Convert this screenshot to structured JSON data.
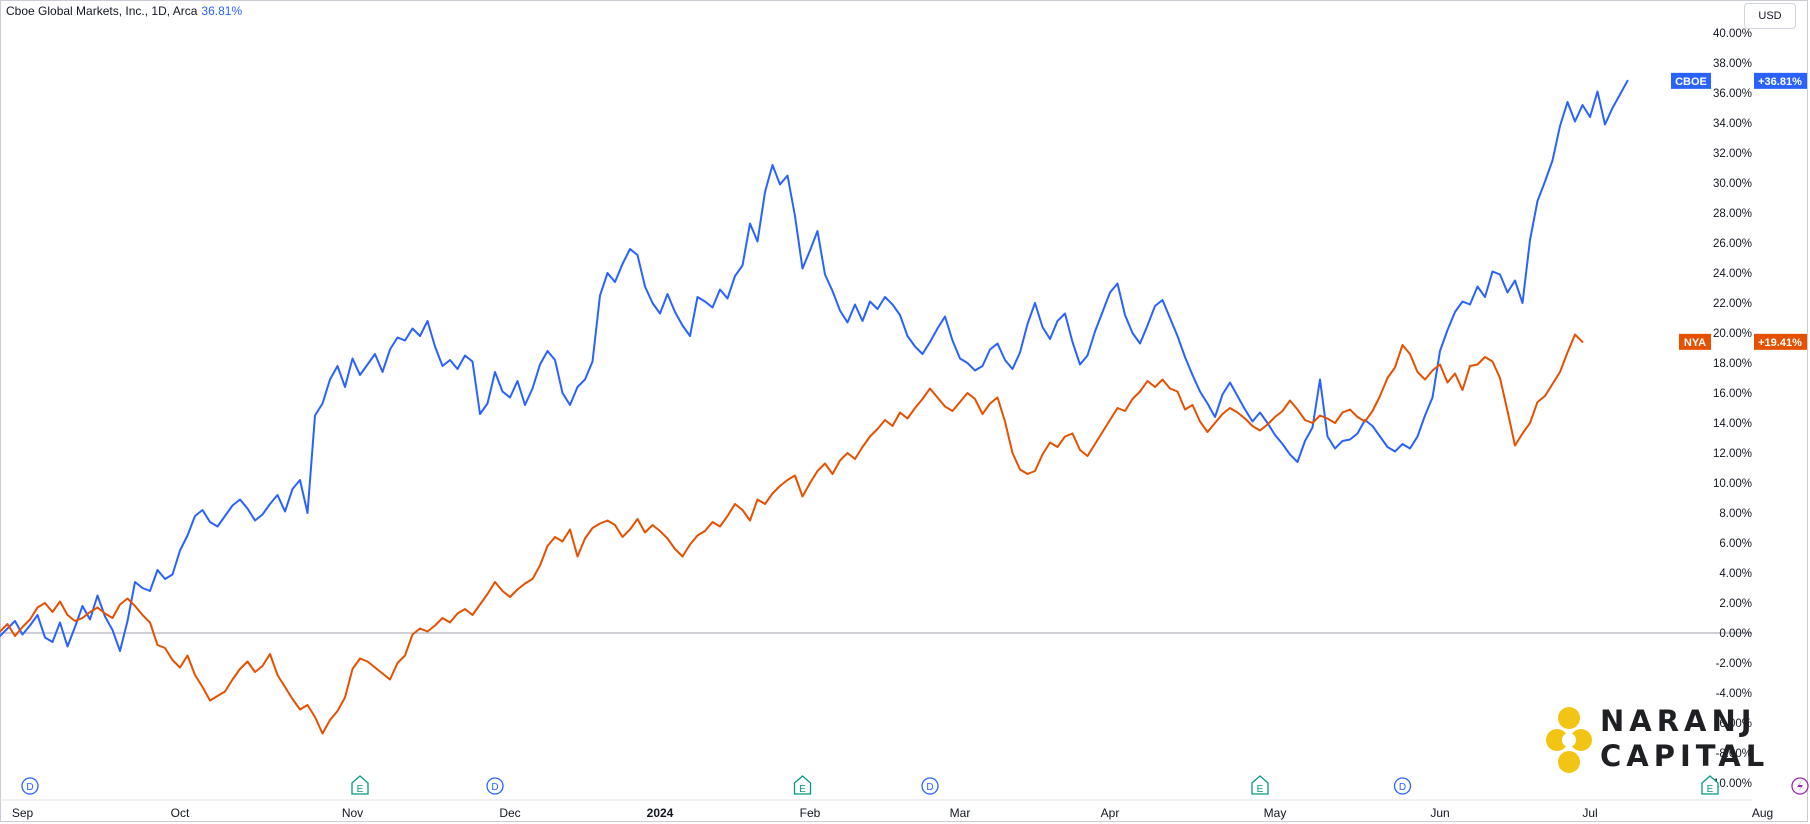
{
  "header": {
    "symbol_label": "Cboe Global Markets, Inc., 1D, Arca",
    "change": "36.81%",
    "currency_button": "USD"
  },
  "logo": {
    "line1": "NARANJ",
    "line2": "CAPITAL"
  },
  "colors": {
    "cboe": "#2962ff",
    "nya": "#e65100",
    "zero_line": "#b2b5be",
    "axis_text": "#131722",
    "dividend": "#2962ff",
    "earnings": "#089981",
    "split": "#9c27b0"
  },
  "chart_data": {
    "type": "line",
    "title": "",
    "x_axis": {
      "ticks": [
        {
          "label": "Sep",
          "idx": 3
        },
        {
          "label": "Oct",
          "idx": 24
        },
        {
          "label": "Nov",
          "idx": 47
        },
        {
          "label": "Dec",
          "idx": 68
        },
        {
          "label": "2024",
          "idx": 88,
          "bold": true
        },
        {
          "label": "Feb",
          "idx": 108
        },
        {
          "label": "Mar",
          "idx": 128
        },
        {
          "label": "Apr",
          "idx": 148
        },
        {
          "label": "May",
          "idx": 170
        },
        {
          "label": "Jun",
          "idx": 192
        },
        {
          "label": "Jul",
          "idx": 212
        },
        {
          "label": "Aug",
          "idx": 235
        },
        {
          "label": "Sep",
          "idx": 257
        }
      ]
    },
    "y_axis": {
      "unit": "%",
      "range": [
        -10,
        40
      ],
      "ticks": [
        "40.00%",
        "38.00%",
        "36.00%",
        "34.00%",
        "32.00%",
        "30.00%",
        "28.00%",
        "26.00%",
        "24.00%",
        "22.00%",
        "20.00%",
        "18.00%",
        "16.00%",
        "14.00%",
        "12.00%",
        "10.00%",
        "8.00%",
        "6.00%",
        "4.00%",
        "2.00%",
        "0.00%",
        "-2.00%",
        "-4.00%",
        "-6.00%",
        "-8.00%",
        "-10.00%"
      ],
      "tick_values": [
        40,
        38,
        36,
        34,
        32,
        30,
        28,
        26,
        24,
        22,
        20,
        18,
        16,
        14,
        12,
        10,
        8,
        6,
        4,
        2,
        0,
        -2,
        -4,
        -6,
        -8,
        -10
      ]
    },
    "series": [
      {
        "name": "CBOE",
        "last_label": "+36.81%",
        "last_value": 36.81,
        "values": [
          -0.2,
          0.3,
          0.8,
          -0.1,
          0.5,
          1.2,
          -0.3,
          -0.6,
          0.7,
          -0.9,
          0.4,
          1.8,
          0.9,
          2.5,
          1.1,
          0.2,
          -1.2,
          0.8,
          3.4,
          3.0,
          2.8,
          4.2,
          3.6,
          3.9,
          5.5,
          6.5,
          7.8,
          8.2,
          7.4,
          7.1,
          7.8,
          8.5,
          8.9,
          8.3,
          7.5,
          7.9,
          8.6,
          9.2,
          8.1,
          9.6,
          10.2,
          8.0,
          14.5,
          15.3,
          16.9,
          17.8,
          16.4,
          18.3,
          17.2,
          17.9,
          18.6,
          17.4,
          18.9,
          19.7,
          19.5,
          20.3,
          19.8,
          20.8,
          19.1,
          17.8,
          18.2,
          17.6,
          18.5,
          18.1,
          14.6,
          15.3,
          17.4,
          16.1,
          15.7,
          16.8,
          15.2,
          16.3,
          17.9,
          18.8,
          18.2,
          16.0,
          15.2,
          16.4,
          16.9,
          18.1,
          22.5,
          24.0,
          23.4,
          24.6,
          25.6,
          25.2,
          23.1,
          22.0,
          21.3,
          22.6,
          21.4,
          20.5,
          19.8,
          22.4,
          22.1,
          21.7,
          22.9,
          22.3,
          23.8,
          24.5,
          27.3,
          26.1,
          29.4,
          31.2,
          29.9,
          30.5,
          27.8,
          24.3,
          25.5,
          26.8,
          23.9,
          22.8,
          21.5,
          20.7,
          21.9,
          20.8,
          22.1,
          21.6,
          22.4,
          21.9,
          21.2,
          19.8,
          19.1,
          18.6,
          19.4,
          20.3,
          21.1,
          19.5,
          18.3,
          18.0,
          17.5,
          17.8,
          18.9,
          19.3,
          18.2,
          17.6,
          18.7,
          20.6,
          22.0,
          20.4,
          19.6,
          20.8,
          21.3,
          19.4,
          17.9,
          18.5,
          20.1,
          21.4,
          22.7,
          23.3,
          21.2,
          20.0,
          19.3,
          20.5,
          21.8,
          22.2,
          21.0,
          19.8,
          18.4,
          17.2,
          16.1,
          15.3,
          14.4,
          15.9,
          16.7,
          15.8,
          14.9,
          14.1,
          14.7,
          14.0,
          13.2,
          12.6,
          11.9,
          11.4,
          12.8,
          13.7,
          16.9,
          13.1,
          12.3,
          12.8,
          12.9,
          13.3,
          14.2,
          13.8,
          13.1,
          12.4,
          12.1,
          12.6,
          12.3,
          13.1,
          14.5,
          15.7,
          18.8,
          20.2,
          21.4,
          22.1,
          21.9,
          23.1,
          22.4,
          24.1,
          23.9,
          22.7,
          23.5,
          22.0,
          26.2,
          28.8,
          30.1,
          31.5,
          33.8,
          35.4,
          34.1,
          35.2,
          34.4,
          36.1,
          33.9,
          35.0,
          35.9,
          36.81
        ]
      },
      {
        "name": "NYA",
        "last_label": "+19.41%",
        "last_value": 19.41,
        "values": [
          0.1,
          0.6,
          -0.2,
          0.4,
          0.9,
          1.7,
          2.0,
          1.4,
          2.1,
          1.2,
          0.8,
          1.0,
          1.4,
          1.7,
          1.3,
          1.0,
          1.9,
          2.3,
          1.8,
          1.2,
          0.7,
          -0.8,
          -1.0,
          -1.8,
          -2.3,
          -1.5,
          -2.8,
          -3.6,
          -4.5,
          -4.2,
          -3.9,
          -3.1,
          -2.4,
          -1.9,
          -2.6,
          -2.2,
          -1.4,
          -2.8,
          -3.6,
          -4.4,
          -5.1,
          -4.8,
          -5.6,
          -6.7,
          -5.8,
          -5.2,
          -4.3,
          -2.4,
          -1.7,
          -1.9,
          -2.3,
          -2.7,
          -3.1,
          -2.0,
          -1.5,
          -0.1,
          0.3,
          0.1,
          0.5,
          1.0,
          0.7,
          1.3,
          1.6,
          1.2,
          1.9,
          2.6,
          3.4,
          2.8,
          2.4,
          2.9,
          3.3,
          3.6,
          4.5,
          5.8,
          6.4,
          6.1,
          6.9,
          5.1,
          6.3,
          7.0,
          7.3,
          7.5,
          7.2,
          6.4,
          6.9,
          7.6,
          6.7,
          7.2,
          6.8,
          6.3,
          5.6,
          5.1,
          5.9,
          6.5,
          6.8,
          7.4,
          7.1,
          7.8,
          8.6,
          8.2,
          7.5,
          8.9,
          8.6,
          9.3,
          9.8,
          10.2,
          10.5,
          9.1,
          10.0,
          10.8,
          11.3,
          10.6,
          11.5,
          12.0,
          11.6,
          12.4,
          13.1,
          13.6,
          14.2,
          13.8,
          14.7,
          14.3,
          15.0,
          15.6,
          16.3,
          15.7,
          15.1,
          14.8,
          15.4,
          16.0,
          15.6,
          14.6,
          15.3,
          15.7,
          14.1,
          12.0,
          10.9,
          10.6,
          10.8,
          11.9,
          12.7,
          12.4,
          13.1,
          13.3,
          12.2,
          11.8,
          12.6,
          13.4,
          14.2,
          15.0,
          14.8,
          15.6,
          16.1,
          16.8,
          16.4,
          16.9,
          16.3,
          16.1,
          14.9,
          15.2,
          14.1,
          13.4,
          14.0,
          14.6,
          15.0,
          14.7,
          14.3,
          13.8,
          13.5,
          13.9,
          14.4,
          14.8,
          15.5,
          14.9,
          14.2,
          14.0,
          14.5,
          14.3,
          14.0,
          14.7,
          14.9,
          14.4,
          14.1,
          14.8,
          15.8,
          17.0,
          17.7,
          19.2,
          18.6,
          17.4,
          16.9,
          17.5,
          17.9,
          16.7,
          17.3,
          16.2,
          17.8,
          17.9,
          18.4,
          18.1,
          17.0,
          14.8,
          12.5,
          13.3,
          14.0,
          15.4,
          15.8,
          16.6,
          17.4,
          18.7,
          19.9,
          19.41
        ]
      }
    ],
    "events": [
      {
        "type": "D",
        "idx": 4
      },
      {
        "type": "E",
        "idx": 48
      },
      {
        "type": "D",
        "idx": 66
      },
      {
        "type": "E",
        "idx": 107
      },
      {
        "type": "D",
        "idx": 124
      },
      {
        "type": "E",
        "idx": 168
      },
      {
        "type": "D",
        "idx": 187
      },
      {
        "type": "E",
        "idx": 228
      },
      {
        "type": "S",
        "idx": 240
      },
      {
        "type": "D",
        "idx": 247
      }
    ]
  }
}
